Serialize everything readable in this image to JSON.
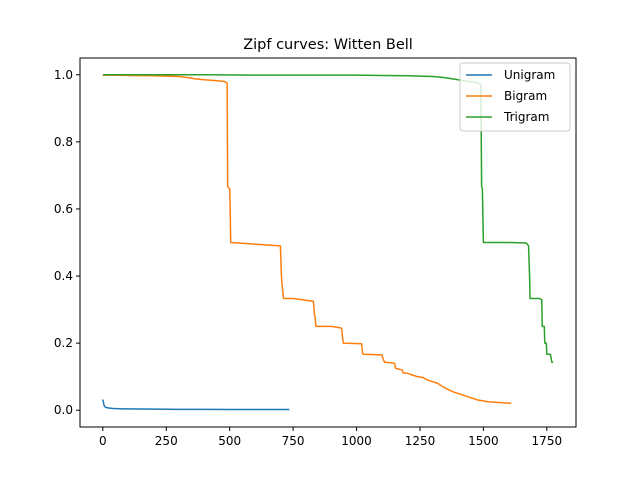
{
  "chart_data": {
    "type": "line",
    "title": "Zipf curves: Witten Bell",
    "xlabel": "",
    "ylabel": "",
    "xlim": [
      -90,
      1865
    ],
    "ylim": [
      -0.05,
      1.05
    ],
    "xticks": [
      0,
      250,
      500,
      750,
      1000,
      1250,
      1500,
      1750
    ],
    "yticks": [
      0.0,
      0.2,
      0.4,
      0.6,
      0.8,
      1.0
    ],
    "xtick_labels": [
      "0",
      "250",
      "500",
      "750",
      "1000",
      "1250",
      "1500",
      "1750"
    ],
    "ytick_labels": [
      "0.0",
      "0.2",
      "0.4",
      "0.6",
      "0.8",
      "1.0"
    ],
    "grid": false,
    "legend_position": "top-right",
    "series": [
      {
        "name": "Unigram",
        "color": "#1f77b4",
        "x": [
          0,
          5,
          10,
          20,
          40,
          80,
          150,
          250,
          300,
          400,
          500,
          600,
          700,
          735
        ],
        "y": [
          0.032,
          0.014,
          0.009,
          0.007,
          0.005,
          0.004,
          0.0035,
          0.003,
          0.0025,
          0.0025,
          0.0022,
          0.002,
          0.002,
          0.002
        ]
      },
      {
        "name": "Bigram",
        "color": "#ff7f0e",
        "x": [
          0,
          100,
          200,
          300,
          350,
          360,
          400,
          450,
          480,
          490,
          492,
          500,
          502,
          504,
          700,
          704,
          706,
          710,
          712,
          750,
          780,
          800,
          830,
          834,
          836,
          840,
          844,
          900,
          940,
          942,
          944,
          946,
          948,
          950,
          1020,
          1024,
          1026,
          1100,
          1104,
          1110,
          1114,
          1150,
          1154,
          1180,
          1184,
          1200,
          1220,
          1240,
          1260,
          1280,
          1300,
          1320,
          1340,
          1360,
          1380,
          1400,
          1420,
          1440,
          1460,
          1480,
          1500,
          1520,
          1540,
          1560,
          1580,
          1600,
          1610
        ],
        "y": [
          0.999,
          0.998,
          0.997,
          0.995,
          0.99,
          0.988,
          0.985,
          0.982,
          0.98,
          0.975,
          0.667,
          0.66,
          0.6,
          0.5,
          0.49,
          0.4,
          0.38,
          0.35,
          0.333,
          0.333,
          0.33,
          0.328,
          0.325,
          0.286,
          0.28,
          0.25,
          0.25,
          0.25,
          0.245,
          0.24,
          0.222,
          0.21,
          0.2,
          0.2,
          0.198,
          0.17,
          0.167,
          0.165,
          0.155,
          0.143,
          0.143,
          0.14,
          0.125,
          0.12,
          0.111,
          0.11,
          0.105,
          0.1,
          0.098,
          0.09,
          0.085,
          0.08,
          0.07,
          0.062,
          0.055,
          0.05,
          0.045,
          0.04,
          0.035,
          0.03,
          0.028,
          0.025,
          0.024,
          0.023,
          0.022,
          0.021,
          0.02
        ]
      },
      {
        "name": "Trigram",
        "color": "#2ca02c",
        "x": [
          0,
          200,
          400,
          600,
          800,
          1000,
          1100,
          1200,
          1300,
          1330,
          1360,
          1400,
          1440,
          1460,
          1480,
          1490,
          1493,
          1496,
          1500,
          1550,
          1600,
          1660,
          1670,
          1678,
          1682,
          1684,
          1690,
          1700,
          1720,
          1730,
          1732,
          1736,
          1740,
          1742,
          1748,
          1750,
          1760,
          1764,
          1770,
          1775
        ],
        "y": [
          1.0,
          1.0,
          1.0,
          0.999,
          0.999,
          0.999,
          0.998,
          0.997,
          0.995,
          0.993,
          0.99,
          0.985,
          0.98,
          0.978,
          0.975,
          0.97,
          0.667,
          0.66,
          0.5,
          0.5,
          0.5,
          0.499,
          0.498,
          0.49,
          0.4,
          0.333,
          0.333,
          0.333,
          0.333,
          0.33,
          0.25,
          0.25,
          0.25,
          0.2,
          0.2,
          0.167,
          0.167,
          0.167,
          0.143,
          0.143
        ]
      }
    ]
  }
}
